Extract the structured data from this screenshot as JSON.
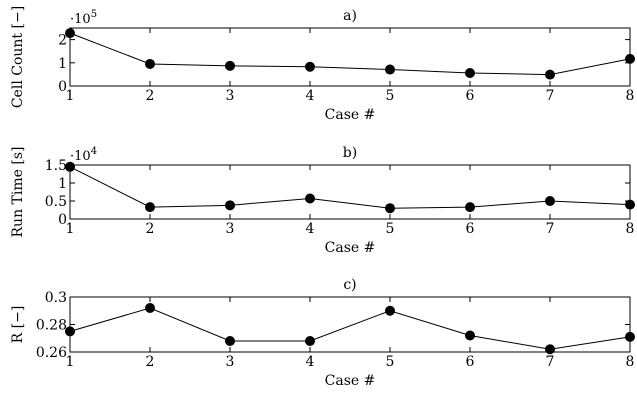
{
  "chart_data": [
    {
      "type": "line",
      "title": "a)",
      "xlabel": "Case #",
      "ylabel": "Cell Count [−]",
      "multiplier_label": "·10",
      "multiplier_exp": "5",
      "x": [
        1,
        2,
        3,
        4,
        5,
        6,
        7,
        8
      ],
      "values": [
        2.28,
        0.95,
        0.87,
        0.83,
        0.71,
        0.56,
        0.49,
        1.17
      ],
      "xlim": [
        1,
        8
      ],
      "ylim": [
        0,
        2.5
      ],
      "yticks": [
        0,
        1,
        2
      ],
      "ytick_labels": [
        "0",
        "1",
        "2"
      ],
      "xticks": [
        1,
        2,
        3,
        4,
        5,
        6,
        7,
        8
      ],
      "xtick_labels": [
        "1",
        "2",
        "3",
        "4",
        "5",
        "6",
        "7",
        "8"
      ]
    },
    {
      "type": "line",
      "title": "b)",
      "xlabel": "Case #",
      "ylabel": "Run Time [s]",
      "multiplier_label": "·10",
      "multiplier_exp": "4",
      "x": [
        1,
        2,
        3,
        4,
        5,
        6,
        7,
        8
      ],
      "values": [
        1.45,
        0.33,
        0.38,
        0.57,
        0.3,
        0.33,
        0.5,
        0.4
      ],
      "xlim": [
        1,
        8
      ],
      "ylim": [
        0,
        1.5
      ],
      "yticks": [
        0,
        0.5,
        1,
        1.5
      ],
      "ytick_labels": [
        "0",
        "0.5",
        "1",
        "1.5"
      ],
      "xticks": [
        1,
        2,
        3,
        4,
        5,
        6,
        7,
        8
      ],
      "xtick_labels": [
        "1",
        "2",
        "3",
        "4",
        "5",
        "6",
        "7",
        "8"
      ]
    },
    {
      "type": "line",
      "title": "c)",
      "xlabel": "Case #",
      "ylabel": "R [−]",
      "x": [
        1,
        2,
        3,
        4,
        5,
        6,
        7,
        8
      ],
      "values": [
        0.275,
        0.292,
        0.268,
        0.268,
        0.29,
        0.272,
        0.262,
        0.271
      ],
      "xlim": [
        1,
        8
      ],
      "ylim": [
        0.26,
        0.3
      ],
      "yticks": [
        0.26,
        0.28,
        0.3
      ],
      "ytick_labels": [
        "0.26",
        "0.28",
        "0.3"
      ],
      "xticks": [
        1,
        2,
        3,
        4,
        5,
        6,
        7,
        8
      ],
      "xtick_labels": [
        "1",
        "2",
        "3",
        "4",
        "5",
        "6",
        "7",
        "8"
      ]
    }
  ]
}
